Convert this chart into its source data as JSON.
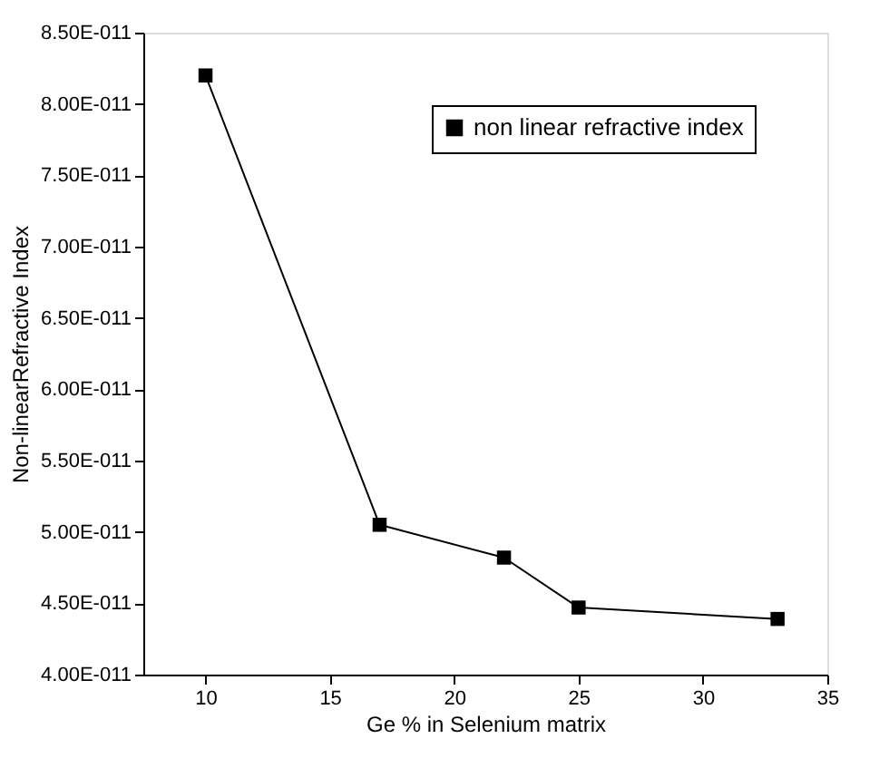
{
  "chart_data": {
    "type": "line",
    "xlabel": "Ge % in Selenium matrix",
    "ylabel": "Non-linearRefractive Index",
    "x": [
      10,
      17,
      22,
      25,
      33
    ],
    "series": [
      {
        "name": "non linear refractive index",
        "color": "#000000",
        "values": [
          8.2e-11,
          5.05e-11,
          4.82e-11,
          4.47e-11,
          4.39e-11
        ]
      }
    ],
    "xlim": [
      7.5,
      35
    ],
    "xticks": [
      10,
      15,
      20,
      25,
      30,
      35
    ],
    "ylim": [
      4e-11,
      8.5e-11
    ],
    "yticks": [
      {
        "value": 4e-11,
        "label": "4.00E-011"
      },
      {
        "value": 4.5e-11,
        "label": "4.50E-011"
      },
      {
        "value": 5e-11,
        "label": "5.00E-011"
      },
      {
        "value": 5.5e-11,
        "label": "5.50E-011"
      },
      {
        "value": 6e-11,
        "label": "6.00E-011"
      },
      {
        "value": 6.5e-11,
        "label": "6.50E-011"
      },
      {
        "value": 7e-11,
        "label": "7.00E-011"
      },
      {
        "value": 7.5e-11,
        "label": "7.50E-011"
      },
      {
        "value": 8e-11,
        "label": "8.00E-011"
      },
      {
        "value": 8.5e-11,
        "label": "8.50E-011"
      }
    ],
    "marker": "square",
    "line_style": "solid",
    "grid": false,
    "legend": "top right"
  }
}
